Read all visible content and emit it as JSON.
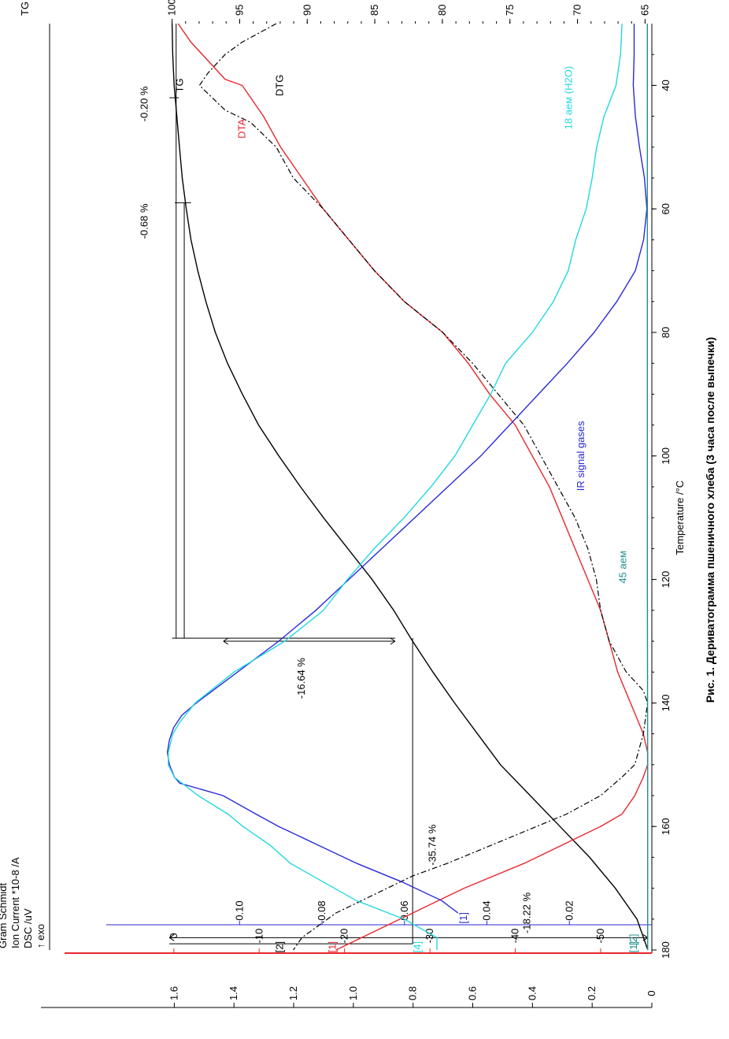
{
  "caption": "Рис. 1. Дериватограмма пшеничного хлеба (3 часа после выпечки)",
  "chart_data": {
    "type": "line",
    "orientation": "rotated 90° counter-clockwise",
    "x_axis": {
      "label": "Temperature /°C",
      "ticks": [
        40,
        60,
        80,
        100,
        120,
        140,
        160,
        180
      ],
      "range": [
        30,
        180
      ]
    },
    "tg_axis": {
      "label": "TG /%",
      "ticks": [
        100,
        95,
        90,
        85,
        80,
        75,
        70,
        65
      ],
      "range": [
        64.5,
        100.5
      ]
    },
    "dsc_axis": {
      "label": "DSC /uV",
      "exo_label": "↑ exo",
      "ticks": [
        0,
        -10,
        -20,
        -30,
        -40,
        -50
      ],
      "range": [
        1,
        -56
      ]
    },
    "gs_axis": {
      "label": "Gram Schmidt",
      "ticks": [
        "0.10",
        "0.08",
        "0.06",
        "0.04",
        "0.02"
      ],
      "range": [
        0,
        0.118
      ]
    },
    "ion_axis": {
      "label": "Ion Current *10-8 /A",
      "ticks": [
        "1.6",
        "1.4",
        "1.2",
        "1.0",
        "0.8",
        "0.6",
        "0.4",
        "0.2",
        "0"
      ],
      "range": [
        0,
        1.63
      ]
    },
    "series_labels": {
      "tg": "TG",
      "dta": "DTA",
      "dtg": "DTG",
      "ir": "IR signal gases",
      "water": "18 аем (H2O)",
      "m45": "45 аем"
    },
    "series_colors": {
      "tg": "#000000",
      "dta": "#e8262c",
      "dtg": "#000000",
      "ir": "#2a2ad8",
      "water": "#22d8e0",
      "m45": "#1f8f8f"
    },
    "end_markers": {
      "dta": "[1]",
      "dtg": "[2]",
      "ir": "[1]",
      "water": "[4]",
      "m45_1": "[1]",
      "m45_2": "[2]"
    },
    "annotations": [
      "-0.20 %",
      "-0.68 %",
      "-16.64 %",
      "-35.74 %",
      "-18.22 %"
    ],
    "series": [
      {
        "key": "tg",
        "name": "TG",
        "axis": "tg",
        "x": [
          30,
          35,
          40,
          45,
          50,
          55,
          60,
          65,
          70,
          75,
          80,
          85,
          90,
          95,
          100,
          105,
          110,
          115,
          120,
          125,
          130,
          135,
          140,
          145,
          150,
          155,
          160,
          165,
          170,
          175,
          180
        ],
        "y": [
          100,
          99.95,
          99.85,
          99.65,
          99.45,
          99.25,
          98.95,
          98.6,
          98.1,
          97.5,
          96.8,
          95.9,
          94.8,
          93.6,
          92.1,
          90.5,
          88.8,
          87,
          85.2,
          83.6,
          82.2,
          80.7,
          79.1,
          77.4,
          75.7,
          73.5,
          71.3,
          69.1,
          67.2,
          65.6,
          64.8
        ]
      },
      {
        "key": "dta",
        "name": "DTA",
        "axis": "dsc",
        "x": [
          30,
          33,
          36,
          39,
          40,
          45,
          50,
          55,
          60,
          65,
          70,
          75,
          80,
          85,
          90,
          95,
          100,
          105,
          110,
          115,
          120,
          125,
          130,
          135,
          140,
          145,
          148,
          150,
          152,
          155,
          158,
          160,
          162,
          164,
          166,
          168,
          170,
          172,
          174,
          176,
          178,
          180
        ],
        "y": [
          -0.5,
          -2,
          -4,
          -6,
          -8,
          -10.5,
          -12.5,
          -15,
          -17.5,
          -20.5,
          -23.5,
          -27,
          -31.5,
          -34.5,
          -37,
          -40,
          -42,
          -44,
          -45.5,
          -47,
          -48.5,
          -50,
          -51,
          -52,
          -53.5,
          -55,
          -55.5,
          -55.5,
          -55,
          -54,
          -52.5,
          -50,
          -47,
          -44,
          -41,
          -37.5,
          -34,
          -31,
          -28,
          -25,
          -22,
          -19
        ]
      },
      {
        "key": "dtg",
        "name": "DTG",
        "axis": "dsc",
        "x": [
          30,
          33,
          35,
          38,
          40,
          44,
          46,
          50,
          55,
          60,
          65,
          70,
          75,
          80,
          85,
          90,
          95,
          100,
          105,
          110,
          115,
          120,
          125,
          130,
          135,
          138,
          140,
          145,
          150,
          152,
          155,
          158,
          160,
          162,
          164,
          166,
          168,
          170,
          172,
          174,
          176,
          178,
          180
        ],
        "y": [
          -12,
          -8,
          -6,
          -4,
          -3,
          -6,
          -9,
          -12,
          -14,
          -17.5,
          -20.5,
          -23.5,
          -27,
          -31.5,
          -35,
          -38,
          -41,
          -43,
          -45,
          -47,
          -48.5,
          -49.5,
          -50,
          -51,
          -53,
          -55,
          -55.5,
          -55,
          -54,
          -52.5,
          -50,
          -46,
          -42.5,
          -39,
          -35.5,
          -32,
          -28,
          -25,
          -22,
          -19,
          -17,
          -15,
          -14
        ]
      },
      {
        "key": "ir",
        "name": "IR signal gases",
        "axis": "gs",
        "x": [
          30,
          35,
          40,
          45,
          50,
          55,
          60,
          65,
          70,
          75,
          80,
          85,
          90,
          95,
          100,
          105,
          110,
          115,
          120,
          125,
          130,
          135,
          140,
          142,
          144,
          146,
          148,
          150,
          152,
          153,
          155,
          158,
          160,
          163,
          166,
          169,
          172,
          174
        ],
        "y": [
          0.0043,
          0.0043,
          0.0045,
          0.004,
          0.003,
          0.0018,
          0.0012,
          0.002,
          0.004,
          0.0085,
          0.014,
          0.0205,
          0.0275,
          0.0345,
          0.0415,
          0.0495,
          0.0575,
          0.0655,
          0.0735,
          0.0815,
          0.0905,
          0.1005,
          0.1105,
          0.114,
          0.116,
          0.117,
          0.1175,
          0.117,
          0.1158,
          0.1145,
          0.104,
          0.096,
          0.0905,
          0.081,
          0.0715,
          0.0605,
          0.051,
          0.047
        ]
      },
      {
        "key": "water",
        "name": "18 аем (H2O)",
        "axis": "ion",
        "x": [
          30,
          35,
          40,
          45,
          50,
          55,
          60,
          65,
          70,
          75,
          80,
          85,
          90,
          95,
          100,
          105,
          110,
          115,
          120,
          125,
          130,
          135,
          140,
          143,
          145,
          148,
          150,
          152,
          155,
          158,
          160,
          163,
          166,
          169,
          172,
          175,
          178,
          180
        ],
        "y": [
          0.1,
          0.105,
          0.12,
          0.16,
          0.185,
          0.2,
          0.22,
          0.255,
          0.28,
          0.33,
          0.4,
          0.49,
          0.54,
          0.6,
          0.66,
          0.74,
          0.83,
          0.93,
          1.02,
          1.1,
          1.23,
          1.4,
          1.53,
          1.58,
          1.605,
          1.62,
          1.62,
          1.6,
          1.52,
          1.42,
          1.37,
          1.28,
          1.21,
          1.1,
          0.99,
          0.83,
          0.72,
          0.72
        ]
      },
      {
        "key": "m45",
        "name": "45 аем",
        "axis": "ion",
        "x": [
          30,
          60,
          90,
          120,
          150,
          180
        ],
        "y": [
          0.015,
          0.015,
          0.015,
          0.015,
          0.014,
          0.014
        ]
      }
    ]
  }
}
